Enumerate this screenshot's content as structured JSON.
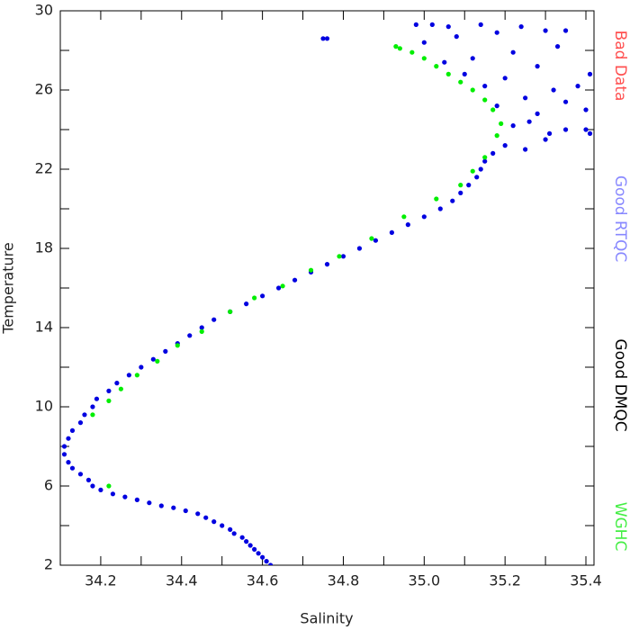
{
  "chart_data": {
    "type": "scatter",
    "x_label": "Salinity",
    "y_label": "Temperature",
    "xlim": [
      34.1,
      35.42
    ],
    "ylim": [
      2,
      30
    ],
    "xticks": [
      34.2,
      34.4,
      34.6,
      34.8,
      {
        "value": 35,
        "label": "35.0"
      },
      35.2,
      35.4
    ],
    "xticks_minor": [
      34.1,
      34.3,
      34.5,
      34.7,
      34.9,
      35.1,
      35.3
    ],
    "yticks": [
      2,
      6,
      10,
      14,
      18,
      22,
      26,
      30
    ],
    "yticks_minor": [
      4,
      8,
      12,
      16,
      20,
      24,
      28
    ],
    "series": [
      {
        "name": "Bad Data",
        "color": "#ff3030",
        "legend_color": "#ff5050",
        "x": [],
        "y": []
      },
      {
        "name": "Good RTQC",
        "color": "#0000e0",
        "legend_color": "#8888ff",
        "x": [
          34.62,
          34.61,
          34.6,
          34.59,
          34.58,
          34.57,
          34.56,
          34.55,
          34.53,
          34.52,
          34.5,
          34.48,
          34.46,
          34.44,
          34.41,
          34.38,
          34.35,
          34.32,
          34.29,
          34.26,
          34.23,
          34.2,
          34.18,
          34.17,
          34.15,
          34.13,
          34.12,
          34.11,
          34.11,
          34.12,
          34.13,
          34.15,
          34.16,
          34.18,
          34.19,
          34.22,
          34.24,
          34.27,
          34.3,
          34.33,
          34.36,
          34.39,
          34.42,
          34.45,
          34.48,
          34.52,
          34.56,
          34.6,
          34.64,
          34.68,
          34.72,
          34.76,
          34.8,
          34.84,
          34.88,
          34.92,
          34.96,
          35.0,
          35.04,
          35.07,
          35.09,
          35.11,
          35.13,
          35.14,
          35.15,
          35.17,
          35.2,
          35.25,
          35.3,
          35.35,
          35.4,
          35.41,
          35.22,
          35.28,
          35.18,
          35.25,
          35.32,
          35.38,
          35.15,
          35.1,
          35.2,
          35.28,
          35.05,
          35.12,
          35.22,
          35.33,
          35.0,
          35.08,
          35.18,
          35.3,
          34.98,
          35.06,
          35.14,
          35.24,
          35.35,
          35.41,
          35.4,
          35.35,
          34.76,
          34.75,
          35.02,
          35.26,
          35.31
        ],
        "y": [
          2.0,
          2.2,
          2.4,
          2.6,
          2.8,
          3.0,
          3.2,
          3.4,
          3.6,
          3.8,
          4.0,
          4.2,
          4.4,
          4.6,
          4.75,
          4.9,
          5.0,
          5.15,
          5.3,
          5.45,
          5.6,
          5.8,
          6.0,
          6.3,
          6.6,
          6.9,
          7.2,
          7.6,
          8.0,
          8.4,
          8.8,
          9.2,
          9.6,
          10.0,
          10.4,
          10.8,
          11.2,
          11.6,
          12.0,
          12.4,
          12.8,
          13.2,
          13.6,
          14.0,
          14.4,
          14.8,
          15.2,
          15.6,
          16.0,
          16.4,
          16.8,
          17.2,
          17.6,
          18.0,
          18.4,
          18.8,
          19.2,
          19.6,
          20.0,
          20.4,
          20.8,
          21.2,
          21.6,
          22.0,
          22.4,
          22.8,
          23.2,
          23.0,
          23.5,
          24.0,
          24.0,
          23.8,
          24.2,
          24.8,
          25.2,
          25.6,
          26.0,
          26.2,
          26.2,
          26.8,
          26.6,
          27.2,
          27.4,
          27.6,
          27.9,
          28.2,
          28.4,
          28.7,
          28.9,
          29.0,
          29.3,
          29.2,
          29.3,
          29.2,
          29.0,
          26.8,
          25.0,
          25.4,
          28.6,
          28.6,
          29.3,
          24.4,
          23.8
        ]
      },
      {
        "name": "Good DMQC",
        "color": "#000000",
        "legend_color": "#000000",
        "x": [],
        "y": []
      },
      {
        "name": "WGHC",
        "color": "#00ee00",
        "legend_color": "#44ee44",
        "x": [
          34.22,
          34.18,
          34.22,
          34.25,
          34.29,
          34.34,
          34.39,
          34.45,
          34.52,
          34.58,
          34.65,
          34.72,
          34.79,
          34.87,
          34.95,
          35.03,
          35.09,
          35.12,
          35.15,
          35.18,
          35.19,
          35.17,
          35.15,
          35.12,
          35.09,
          35.06,
          35.03,
          35.0,
          34.97,
          34.94,
          34.93
        ],
        "y": [
          6.0,
          9.6,
          10.3,
          10.9,
          11.6,
          12.3,
          13.1,
          13.8,
          14.8,
          15.5,
          16.1,
          16.9,
          17.6,
          18.5,
          19.6,
          20.5,
          21.2,
          21.9,
          22.6,
          23.7,
          24.3,
          25.0,
          25.5,
          26.0,
          26.4,
          26.8,
          27.2,
          27.6,
          27.9,
          28.1,
          28.2
        ]
      }
    ]
  }
}
